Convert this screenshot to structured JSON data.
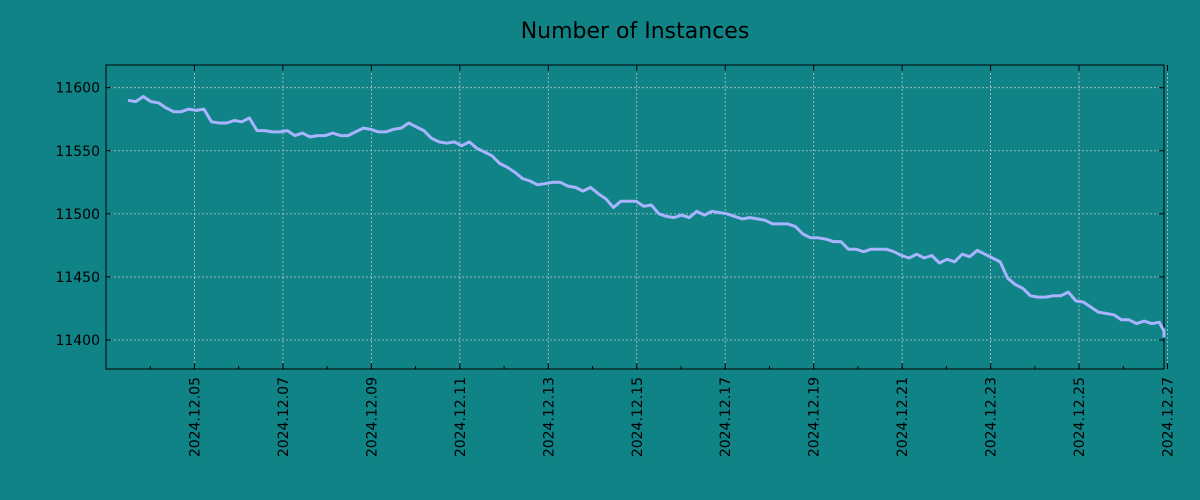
{
  "chart_data": {
    "type": "line",
    "title": "Number of Instances",
    "xlabel": "",
    "ylabel": "",
    "x_range": [
      "2024.12.03 12:00",
      "2024.12.27 12:00"
    ],
    "xlim": [
      "2024.12.03",
      "2024.12.27"
    ],
    "ylim": [
      11377,
      11618
    ],
    "grid": true,
    "colors": {
      "background": "#108387",
      "line": "#a8b4ff",
      "grid": "#b8c8c8",
      "axis": "#000000"
    },
    "x_ticks": [
      "2024.12.05",
      "2024.12.07",
      "2024.12.09",
      "2024.12.11",
      "2024.12.13",
      "2024.12.15",
      "2024.12.17",
      "2024.12.19",
      "2024.12.21",
      "2024.12.23",
      "2024.12.25",
      "2024.12.27"
    ],
    "y_ticks": [
      11400,
      11450,
      11500,
      11550,
      11600
    ],
    "series": [
      {
        "name": "",
        "values": [
          11590,
          11589,
          11593,
          11589,
          11588,
          11584,
          11581,
          11581,
          11583,
          11582,
          11583,
          11573,
          11572,
          11572,
          11574,
          11573,
          11576,
          11566,
          11566,
          11565,
          11565,
          11566,
          11562,
          11564,
          11561,
          11562,
          11562,
          11564,
          11562,
          11562,
          11565,
          11568,
          11567,
          11565,
          11565,
          11567,
          11568,
          11572,
          11569,
          11566,
          11560,
          11557,
          11556,
          11557,
          11554,
          11557,
          11552,
          11549,
          11546,
          11540,
          11537,
          11533,
          11528,
          11526,
          11523,
          11524,
          11525,
          11525,
          11522,
          11521,
          11518,
          11521,
          11516,
          11512,
          11505,
          11510,
          11510,
          11510,
          11506,
          11507,
          11500,
          11498,
          11497,
          11499,
          11497,
          11502,
          11499,
          11502,
          11501,
          11500,
          11498,
          11496,
          11497,
          11496,
          11495,
          11492,
          11492,
          11492,
          11490,
          11484,
          11481,
          11481,
          11480,
          11478,
          11478,
          11472,
          11472,
          11470,
          11472,
          11472,
          11472,
          11470,
          11467,
          11465,
          11468,
          11465,
          11467,
          11461,
          11464,
          11462,
          11468,
          11466,
          11471,
          11468,
          11465,
          11462,
          11449,
          11444,
          11441,
          11435,
          11434,
          11434,
          11435,
          11435,
          11438,
          11431,
          11430,
          11426,
          11422,
          11421,
          11420,
          11416,
          11416,
          11413,
          11415,
          11413,
          11414,
          11407,
          11408,
          11405,
          11402
        ]
      }
    ]
  }
}
